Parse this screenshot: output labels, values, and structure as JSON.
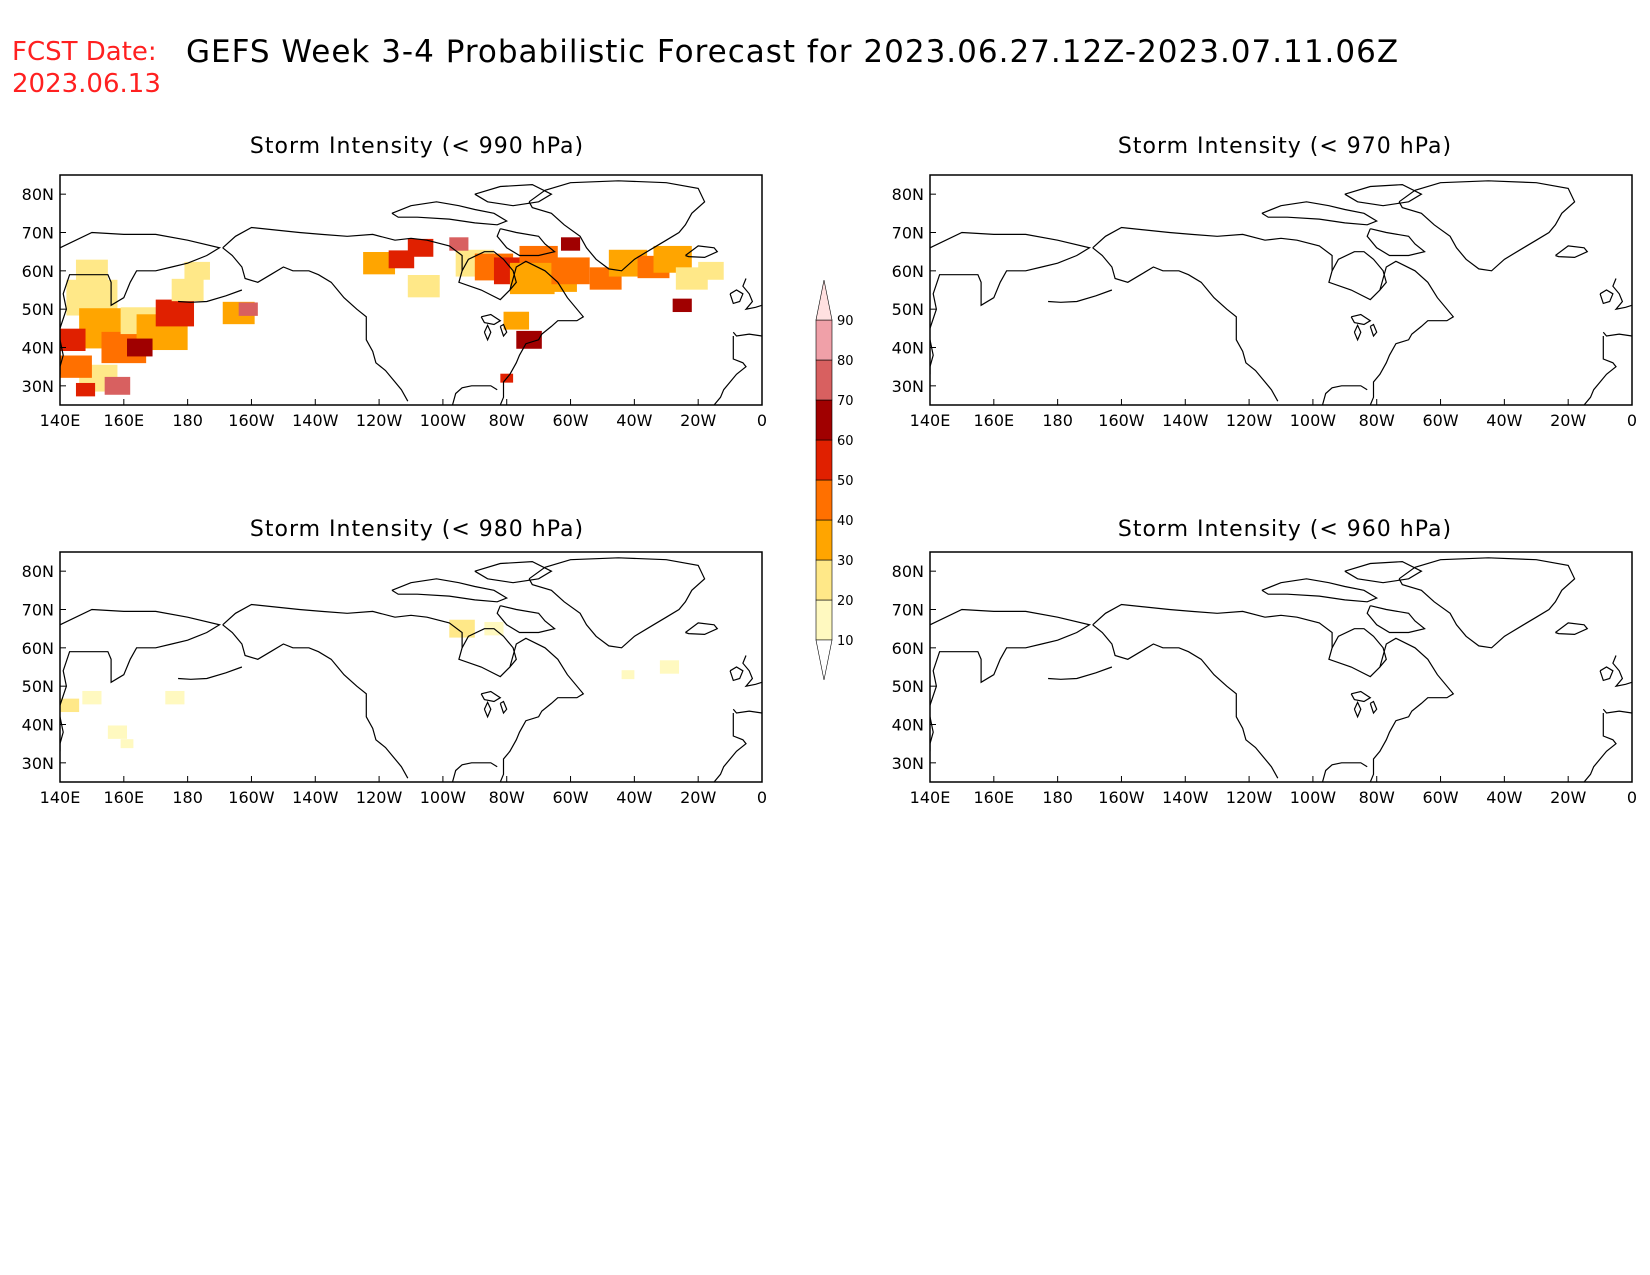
{
  "header": {
    "fcst_label": "FCST Date:",
    "fcst_date": "2023.06.13",
    "title": "GEFS Week 3-4 Probabilistic Forecast for 2023.06.27.12Z-2023.07.11.06Z"
  },
  "axes": {
    "lon_labels": [
      "140E",
      "160E",
      "180",
      "160W",
      "140W",
      "120W",
      "100W",
      "80W",
      "60W",
      "40W",
      "20W",
      "0"
    ],
    "lat_labels": [
      "80N",
      "70N",
      "60N",
      "50N",
      "40N",
      "30N"
    ]
  },
  "panels": [
    {
      "id": "p990",
      "title": "Storm Intensity (< 990 hPa)"
    },
    {
      "id": "p970",
      "title": "Storm Intensity (< 970 hPa)"
    },
    {
      "id": "p980",
      "title": "Storm Intensity (< 980 hPa)"
    },
    {
      "id": "p960",
      "title": "Storm Intensity (< 960 hPa)"
    }
  ],
  "colorbar": {
    "labels": [
      "10",
      "20",
      "30",
      "40",
      "50",
      "60",
      "70",
      "80",
      "90"
    ],
    "colors": [
      "#fff9c0",
      "#ffe888",
      "#ffa500",
      "#ff7000",
      "#e02000",
      "#a00000",
      "#d86060",
      "#f0a0a8",
      "#ffe0e0"
    ]
  }
}
